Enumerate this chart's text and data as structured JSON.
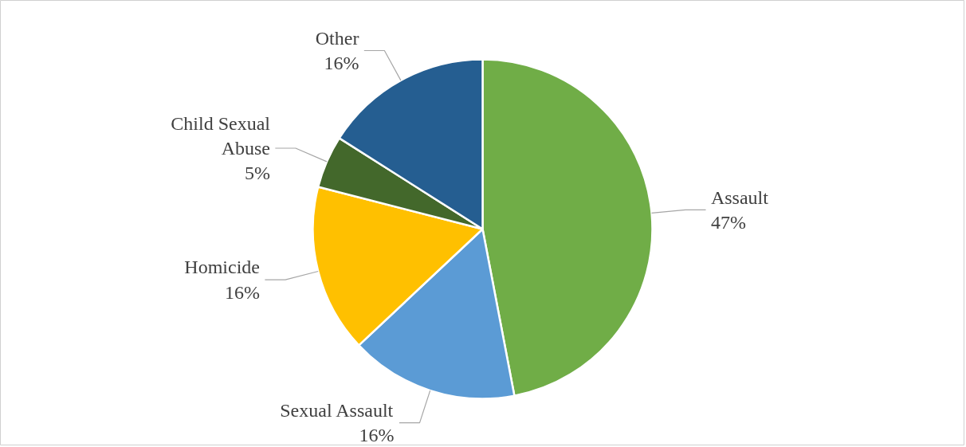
{
  "chart_data": {
    "type": "pie",
    "categories": [
      "Assault",
      "Sexual Assault",
      "Homicide",
      "Child Sexual Abuse",
      "Other"
    ],
    "values": [
      47,
      16,
      16,
      5,
      16
    ],
    "colors": [
      "#70ad47",
      "#5b9bd5",
      "#ffc000",
      "#43682b",
      "#255e91"
    ],
    "value_labels": [
      "47%",
      "16%",
      "16%",
      "5%",
      "16%"
    ]
  }
}
